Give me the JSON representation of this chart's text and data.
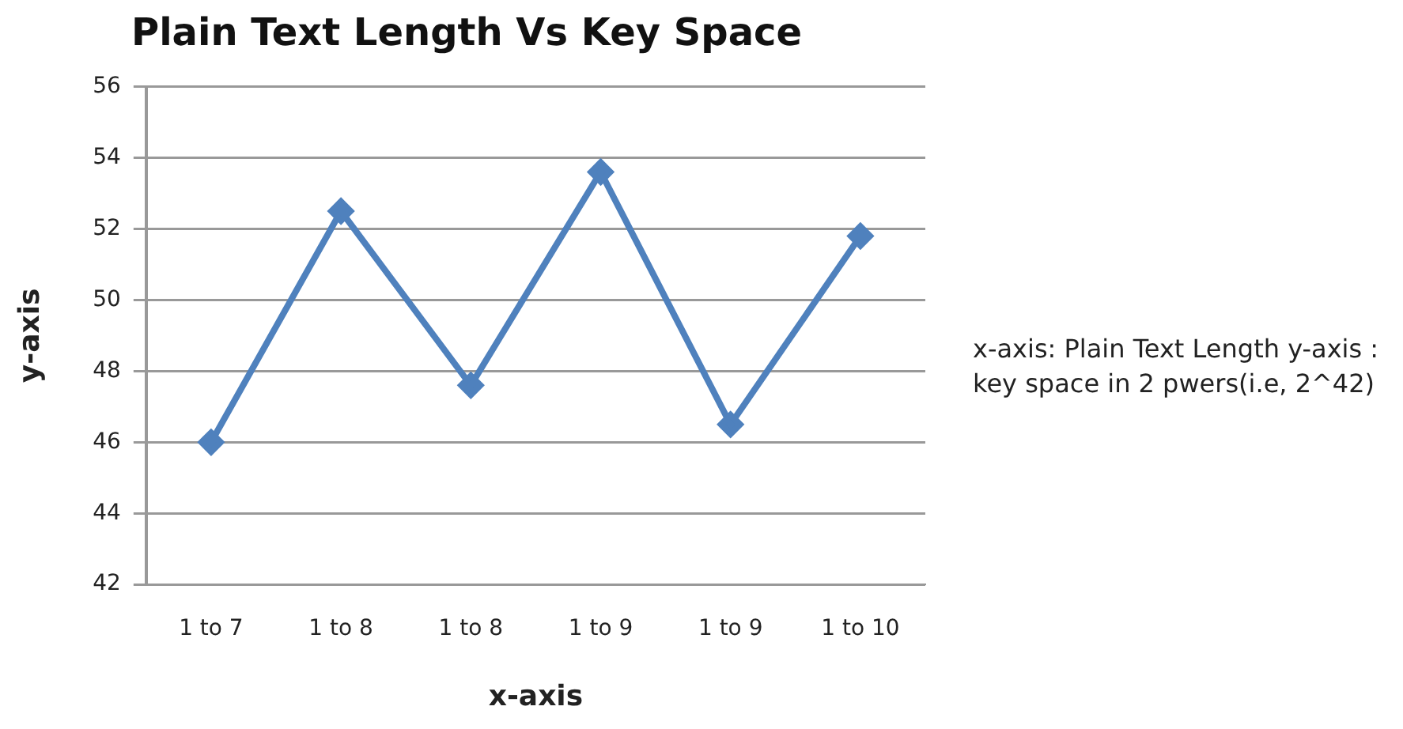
{
  "chart_data": {
    "type": "line",
    "title": "Plain Text Length Vs Key Space",
    "xlabel": "x-axis",
    "ylabel": "y-axis",
    "categories": [
      "1 to 7",
      "1 to 8",
      "1 to 8",
      "1 to 9",
      "1 to 9",
      "1 to 10"
    ],
    "series": [
      {
        "color": "#4f81bd",
        "values": [
          46.0,
          52.5,
          47.6,
          53.6,
          46.5,
          51.8
        ]
      }
    ],
    "ylim": [
      42,
      56
    ],
    "yticks": [
      42,
      44,
      46,
      48,
      50,
      52,
      54,
      56
    ],
    "grid": "y",
    "legend": false,
    "marker": "diamond",
    "line_style": "solid",
    "annotations": [
      "x-axis: Plain Text Length y-axis : key space in 2 pwers(i.e, 2^42)"
    ]
  }
}
